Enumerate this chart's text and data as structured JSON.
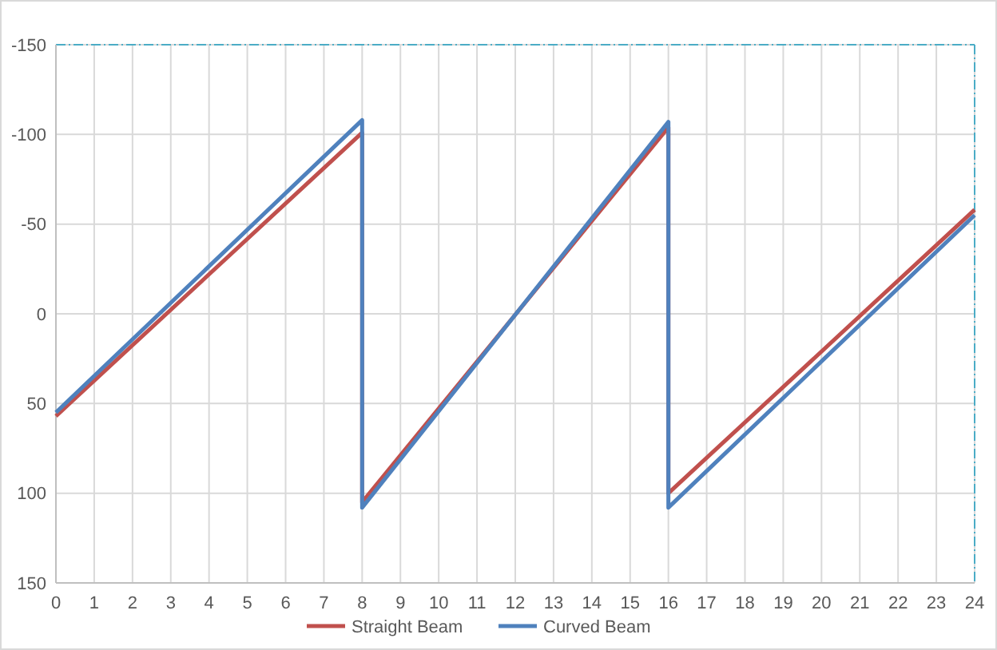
{
  "chart_data": {
    "type": "line",
    "xlim": [
      0,
      24
    ],
    "xticks": [
      0,
      1,
      2,
      3,
      4,
      5,
      6,
      7,
      8,
      9,
      10,
      11,
      12,
      13,
      14,
      15,
      16,
      17,
      18,
      19,
      20,
      21,
      22,
      23,
      24
    ],
    "ylim": [
      150,
      -150
    ],
    "yticks": [
      -150,
      -100,
      -50,
      0,
      50,
      100,
      150
    ],
    "grid": true,
    "legend": "bottom",
    "marker": "none",
    "line_style": "solid",
    "series": [
      {
        "name": "Straight Beam",
        "color": "#c0504d",
        "x": [
          0,
          8,
          8,
          16,
          16,
          24
        ],
        "values": [
          57,
          -101,
          105,
          -104,
          100,
          -58
        ]
      },
      {
        "name": "Curved Beam",
        "color": "#4f81bd",
        "x": [
          0,
          8,
          8,
          16,
          16,
          24
        ],
        "values": [
          55,
          -108,
          108,
          -107,
          108,
          -55
        ]
      }
    ]
  }
}
